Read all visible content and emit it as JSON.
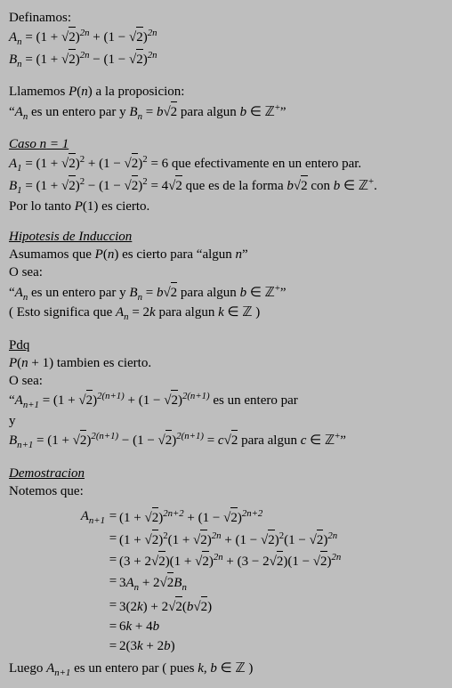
{
  "def": {
    "heading": "Definamos:",
    "An": "A_n = (1+√2)^{2n} + (1−√2)^{2n}",
    "Bn": "B_n = (1+√2)^{2n} − (1−√2)^{2n}"
  },
  "prop": {
    "intro": "Llamemos P(n) a la proposicion:",
    "stmt": "“A_n es un entero par y B_n = b√2 para algun b ∈ ℤ⁺”"
  },
  "case1": {
    "title": "Caso n = 1",
    "l1": "A_1 = (1+√2)^2 + (1−√2)^2 = 6 que efectivamente en un entero par.",
    "l2": "B_1 = (1+√2)^2 − (1−√2)^2 = 4√2 que es de la forma b√2 con b ∈ ℤ⁺.",
    "l3": "Por lo tanto P(1) es cierto."
  },
  "hip": {
    "title": "Hipotesis de Induccion",
    "l1": "Asumamos que P(n) es cierto para “algun n”",
    "l2": "O sea:",
    "l3": "“A_n es un entero par y B_n = b√2 para algun b ∈ ℤ⁺”",
    "l4": "( Esto significa que A_n = 2k para algun k ∈ ℤ )"
  },
  "pdq": {
    "title": "Pdq",
    "l1": "P(n + 1) tambien es cierto.",
    "l2": "O sea:",
    "l3": "“A_{n+1} = (1+√2)^{2(n+1)} + (1−√2)^{2(n+1)} es un entero par",
    "l4": "y",
    "l5": "B_{n+1} = (1+√2)^{2(n+1)} − (1−√2)^{2(n+1)} = c√2 para algun c ∈ ℤ⁺”"
  },
  "demo": {
    "title": "Demostracion",
    "l1": "Notemos que:"
  },
  "align": {
    "lhs": "A_{n+1}",
    "r1": "(1+√2)^{2n+2} + (1−√2)^{2n+2}",
    "r2": "(1+√2)^2(1+√2)^{2n} + (1−√2)^2(1−√2)^{2n}",
    "r3": "(3+2√2)(1+√2)^{2n} + (3−2√2)(1−√2)^{2n}",
    "r4": "3A_n + 2√2 B_n",
    "r5": "3(2k) + 2√2(b√2)",
    "r6": "6k + 4b",
    "r7": "2(3k + 2b)"
  },
  "concl": "Luego A_{n+1} es un entero par ( pues k, b ∈ ℤ )"
}
